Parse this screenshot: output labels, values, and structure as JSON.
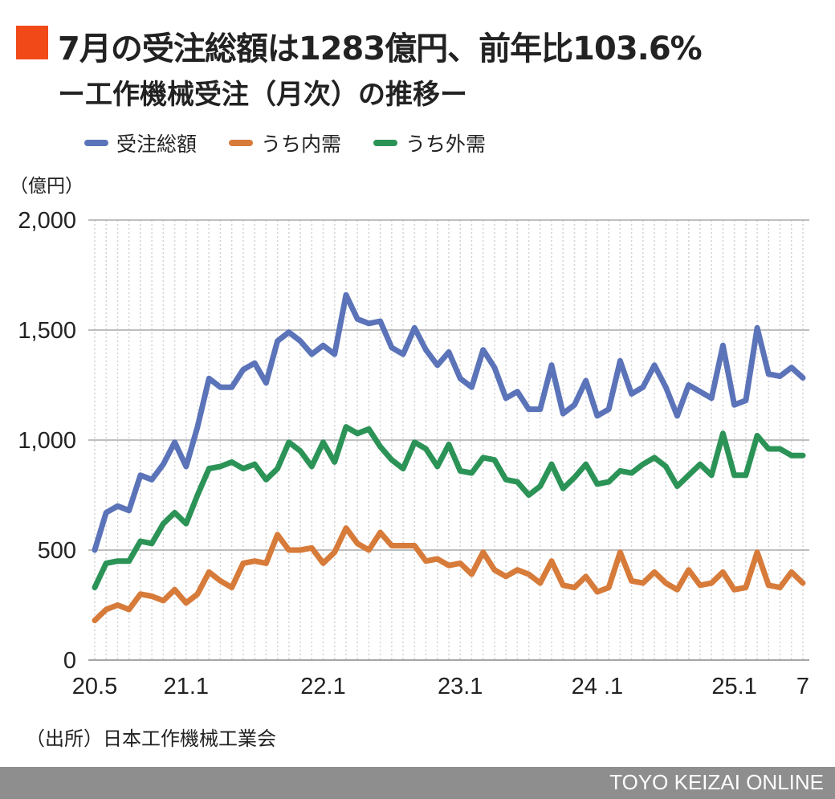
{
  "title": "7月の受注総額は1283億円、前年比103.6%",
  "subtitle": "ー工作機械受注（月次）の推移ー",
  "unit_label": "（億円）",
  "source": "（出所）日本工作機械工業会",
  "footer": "TOYO KEIZAI ONLINE",
  "colors": {
    "accent": "#f14a18",
    "total": "#5b73b8",
    "domestic": "#d77b3a",
    "foreign": "#2c9357"
  },
  "chart_data": {
    "type": "line",
    "ylim": [
      0,
      2000
    ],
    "y_ticks": [
      "0",
      "500",
      "1,000",
      "1,500",
      "2,000"
    ],
    "y_tick_values": [
      0,
      500,
      1000,
      1500,
      2000
    ],
    "x_tick_labels": [
      {
        "index": 0,
        "label": "20.5"
      },
      {
        "index": 8,
        "label": "21.1"
      },
      {
        "index": 20,
        "label": "22.1"
      },
      {
        "index": 32,
        "label": "23.1"
      },
      {
        "index": 44,
        "label": "24 .1"
      },
      {
        "index": 56,
        "label": "25.1"
      },
      {
        "index": 62,
        "label": "7"
      }
    ],
    "x_start": "2020-05",
    "x_end": "2025-07",
    "series": [
      {
        "name": "受注総額",
        "color": "#5b73b8",
        "values": [
          500,
          670,
          700,
          680,
          840,
          820,
          890,
          990,
          880,
          1060,
          1280,
          1240,
          1240,
          1320,
          1350,
          1260,
          1450,
          1490,
          1450,
          1390,
          1430,
          1390,
          1660,
          1550,
          1530,
          1540,
          1420,
          1390,
          1510,
          1410,
          1340,
          1400,
          1280,
          1240,
          1410,
          1330,
          1190,
          1220,
          1140,
          1140,
          1340,
          1120,
          1160,
          1270,
          1110,
          1140,
          1360,
          1210,
          1240,
          1340,
          1240,
          1110,
          1250,
          1220,
          1190,
          1430,
          1160,
          1180,
          1510,
          1300,
          1290,
          1330,
          1283
        ]
      },
      {
        "name": "うち内需",
        "color": "#d77b3a",
        "values": [
          180,
          230,
          250,
          230,
          300,
          290,
          270,
          320,
          260,
          300,
          400,
          360,
          330,
          440,
          450,
          440,
          570,
          500,
          500,
          510,
          440,
          490,
          600,
          530,
          500,
          580,
          520,
          520,
          520,
          450,
          460,
          430,
          440,
          390,
          490,
          410,
          380,
          410,
          390,
          350,
          450,
          340,
          330,
          380,
          310,
          330,
          490,
          360,
          350,
          400,
          350,
          320,
          410,
          340,
          350,
          400,
          320,
          330,
          490,
          340,
          330,
          400,
          350
        ]
      },
      {
        "name": "うち外需",
        "color": "#2c9357",
        "values": [
          330,
          440,
          450,
          450,
          540,
          530,
          620,
          670,
          620,
          750,
          870,
          880,
          900,
          870,
          890,
          820,
          870,
          990,
          950,
          880,
          990,
          900,
          1060,
          1030,
          1050,
          970,
          910,
          870,
          990,
          960,
          880,
          980,
          860,
          850,
          920,
          910,
          820,
          810,
          750,
          790,
          890,
          780,
          830,
          890,
          800,
          810,
          860,
          850,
          890,
          920,
          880,
          790,
          840,
          890,
          840,
          1030,
          840,
          840,
          1020,
          960,
          960,
          930,
          930
        ]
      }
    ]
  }
}
